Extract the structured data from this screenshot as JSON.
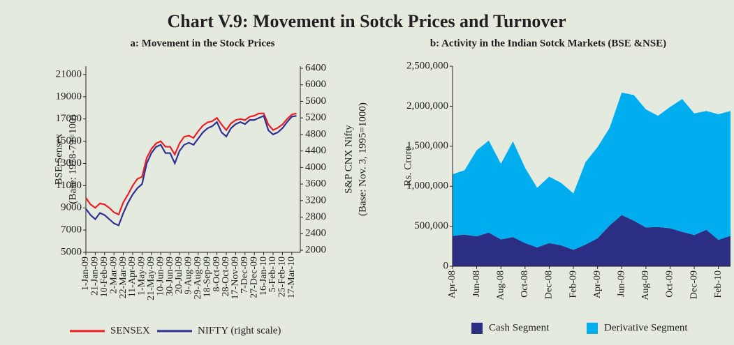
{
  "title": "Chart V.9: Movement in Sotck Prices and Turnover",
  "chart_data": [
    {
      "type": "line",
      "title": "a: Movement in the Stock Prices",
      "ylabel": [
        "BSE Sensex",
        "(Base: 1978-79=100)"
      ],
      "y2label": [
        "S&P CNX Nifty",
        "(Base: Nov. 3, 1995=1000)"
      ],
      "categories": [
        "1-Jan-09",
        null,
        "21-Jan-09",
        null,
        "10-Feb-09",
        null,
        "2-Mar-09",
        null,
        "22-Mar-09",
        null,
        "11-Apr-09",
        null,
        "1-May-09",
        null,
        "21-May-09",
        null,
        "10-Jun-09",
        null,
        "30-Jun-09",
        null,
        "20-Jul-09",
        null,
        "9-Aug-09",
        null,
        "29-Aug-09",
        null,
        "18-Sep-09",
        null,
        "8-Oct-09",
        null,
        "28-Oct-09",
        null,
        "17-Nov-09",
        null,
        "7-Dec-09",
        null,
        "27-Dec-09",
        null,
        "16-Jan-10",
        null,
        "5-Feb-10",
        null,
        "25-Feb-10",
        null,
        "17-Mar-10",
        null
      ],
      "series": [
        {
          "name": "SENSEX",
          "color": "#ed1c24",
          "values": [
            9900,
            9300,
            9000,
            9400,
            9300,
            9000,
            8600,
            8400,
            9500,
            10200,
            11000,
            11600,
            11800,
            13500,
            14300,
            14800,
            15000,
            14500,
            14500,
            13800,
            14800,
            15400,
            15500,
            15300,
            15900,
            16400,
            16700,
            16800,
            17100,
            16500,
            16000,
            16600,
            16900,
            17000,
            16900,
            17200,
            17300,
            17500,
            17500,
            16500,
            16000,
            16200,
            16500,
            17000,
            17400,
            17500
          ]
        },
        {
          "name": "NIFTY (right scale)",
          "color": "#2e3192",
          "axis": "y2",
          "values": [
            3000,
            2850,
            2750,
            2900,
            2850,
            2750,
            2650,
            2600,
            2900,
            3150,
            3350,
            3500,
            3600,
            4100,
            4350,
            4500,
            4550,
            4350,
            4350,
            4100,
            4400,
            4550,
            4600,
            4550,
            4700,
            4850,
            4950,
            5000,
            5100,
            4850,
            4750,
            4950,
            5050,
            5100,
            5050,
            5150,
            5150,
            5200,
            5250,
            4900,
            4800,
            4850,
            4950,
            5100,
            5230,
            5250
          ]
        }
      ],
      "ylim": [
        5000,
        21750
      ],
      "yticks": [
        5000,
        7000,
        9000,
        11000,
        13000,
        15000,
        17000,
        19000,
        21000
      ],
      "y2lim": [
        1950,
        6450
      ],
      "y2ticks": [
        2000,
        2400,
        2800,
        3200,
        3600,
        4000,
        4400,
        4800,
        5200,
        5600,
        6000,
        6400
      ]
    },
    {
      "type": "area",
      "title": "b: Activity in the Indian Sotck Markets (BSE &NSE)",
      "ylabel": [
        "Rs. Crore"
      ],
      "categories": [
        "Apr-08",
        null,
        "Jun-08",
        null,
        "Aug-08",
        null,
        "Oct-08",
        null,
        "Dec-08",
        null,
        "Feb-09",
        null,
        "Apr-09",
        null,
        "Jun-09",
        null,
        "Aug-09",
        null,
        "Oct-09",
        null,
        "Dec-09",
        null,
        "Feb-10",
        null
      ],
      "series": [
        {
          "name": "Cash Segment",
          "color": "#2b2e83",
          "values": [
            380000,
            395000,
            375000,
            420000,
            335000,
            365000,
            290000,
            235000,
            290000,
            260000,
            205000,
            270000,
            350000,
            510000,
            640000,
            570000,
            485000,
            490000,
            475000,
            430000,
            390000,
            455000,
            330000,
            380000
          ]
        },
        {
          "name": "Derivative Segment",
          "color": "#00aeef",
          "values": [
            770000,
            805000,
            1075000,
            1150000,
            945000,
            1195000,
            940000,
            745000,
            830000,
            780000,
            705000,
            1030000,
            1140000,
            1220000,
            1530000,
            1570000,
            1475000,
            1390000,
            1515000,
            1660000,
            1520000,
            1485000,
            1570000,
            1560000
          ]
        }
      ],
      "stacked": true,
      "ylim": [
        0,
        2500000
      ],
      "yticks": [
        0,
        {
          "value": 500000,
          "label": "500,000"
        },
        {
          "value": 1000000,
          "label": "1,000,000"
        },
        {
          "value": 1500000,
          "label": "1,500,000"
        },
        {
          "value": 2000000,
          "label": "2,000,000"
        },
        {
          "value": 2500000,
          "label": "2,500,000"
        }
      ]
    }
  ]
}
